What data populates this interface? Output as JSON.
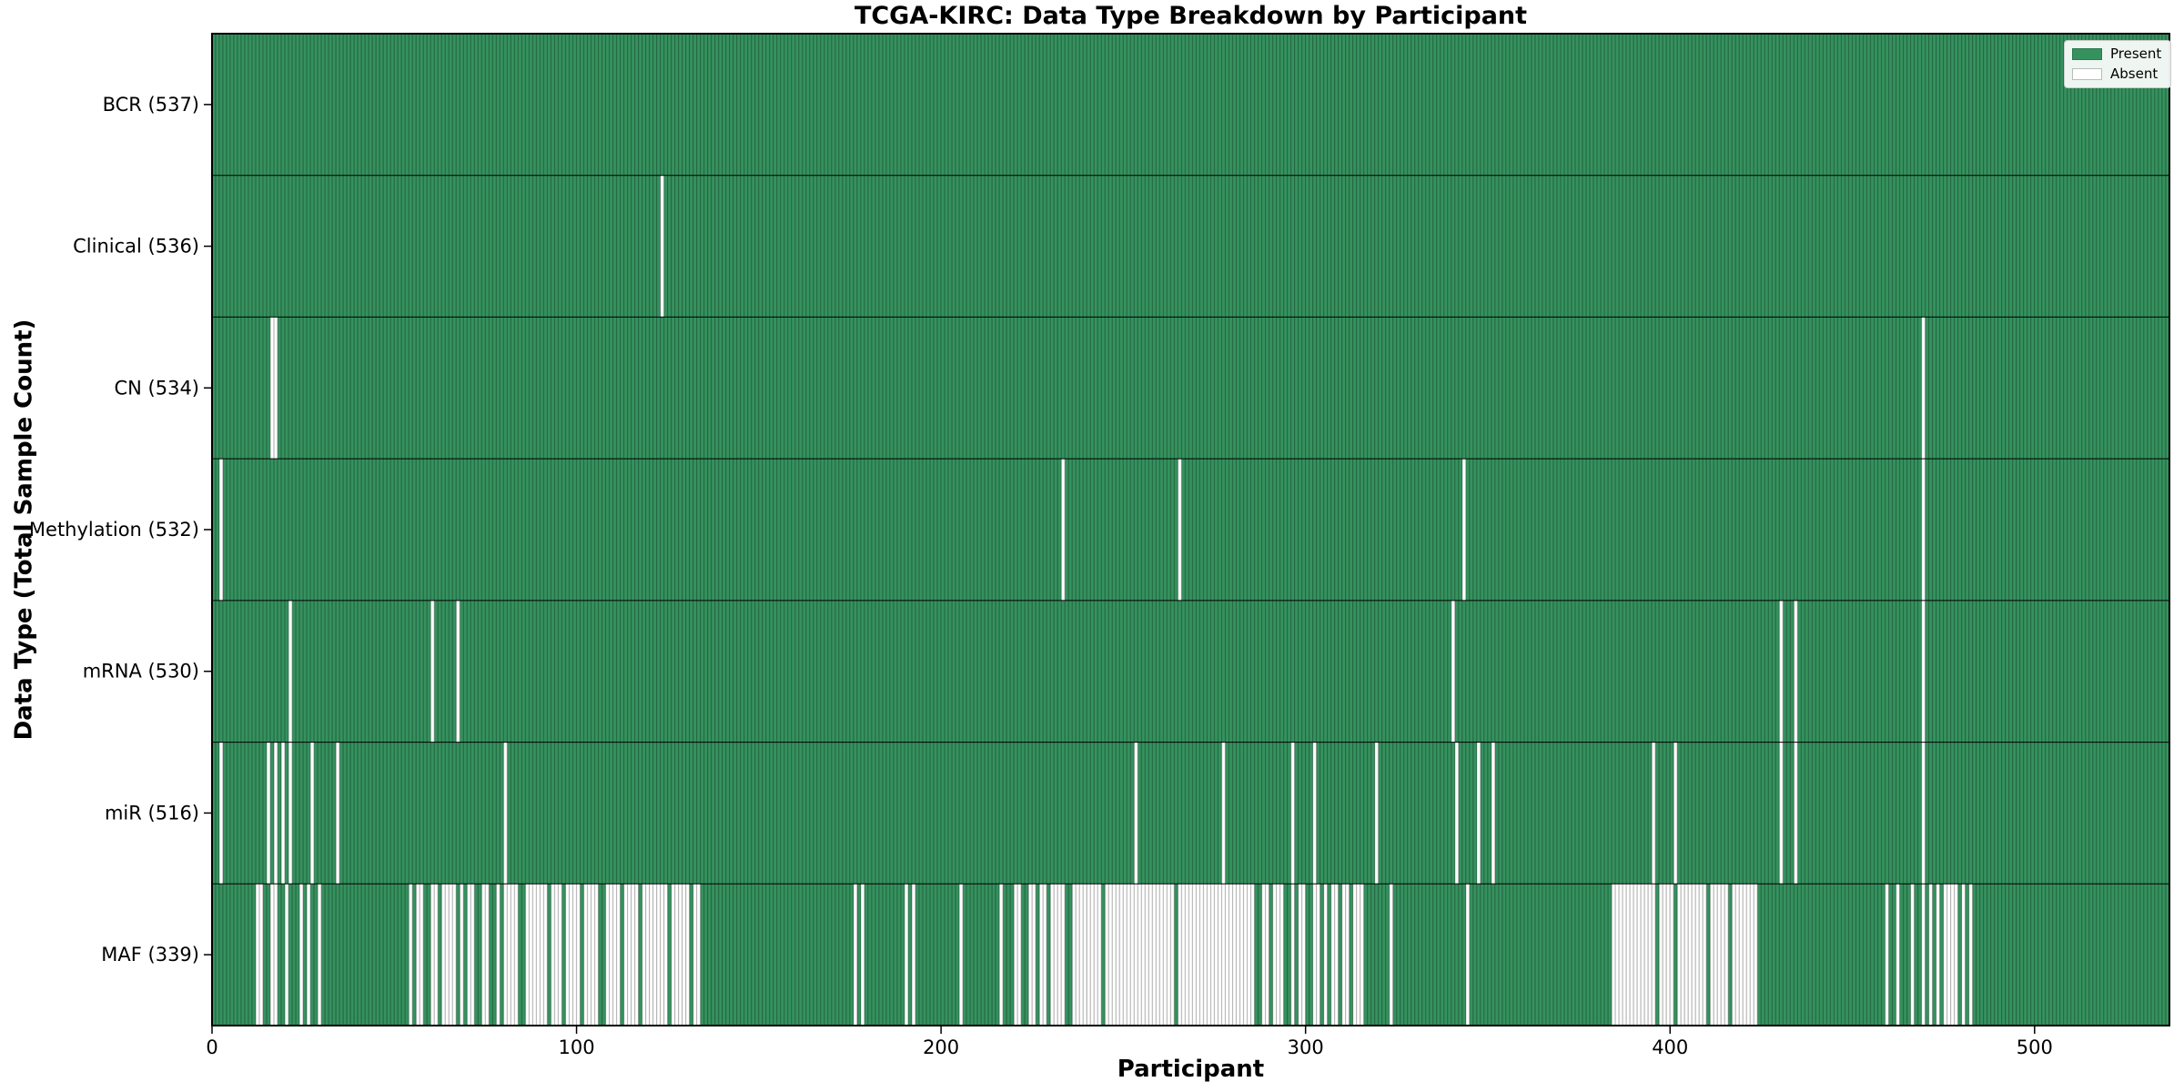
{
  "chart_data": {
    "type": "heatmap",
    "title": "TCGA-KIRC: Data Type Breakdown by Participant",
    "xlabel": "Participant",
    "ylabel": "Data Type (Total Sample Count)",
    "x_ticks": [
      0,
      100,
      200,
      300,
      400,
      500
    ],
    "x_range": [
      0,
      537
    ],
    "total_participants": 537,
    "grid": false,
    "legend_position": "upper right",
    "legend": [
      {
        "label": "Present",
        "color": "#35925e"
      },
      {
        "label": "Absent",
        "color": "#ffffff"
      }
    ],
    "colors": {
      "present": "#35925e",
      "absent": "#ffffff",
      "bar_edge": "rgba(0,0,0,0.30)",
      "spine": "#000000",
      "row_separator": "#000000"
    },
    "rows": [
      {
        "name": "BCR",
        "label": "BCR (537)",
        "present_count": 537,
        "absent_count": 0,
        "absent_ranges": []
      },
      {
        "name": "Clinical",
        "label": "Clinical (536)",
        "present_count": 536,
        "absent_count": 1,
        "absent_ranges": [
          [
            123,
            123
          ]
        ]
      },
      {
        "name": "CN",
        "label": "CN (534)",
        "present_count": 534,
        "absent_count": 3,
        "absent_ranges": [
          [
            16,
            17
          ],
          [
            469,
            469
          ]
        ]
      },
      {
        "name": "Methylation",
        "label": "Methylation (532)",
        "present_count": 532,
        "absent_count": 5,
        "absent_ranges": [
          [
            2,
            2
          ],
          [
            233,
            233
          ],
          [
            265,
            265
          ],
          [
            343,
            343
          ],
          [
            469,
            469
          ]
        ]
      },
      {
        "name": "mRNA",
        "label": "mRNA (530)",
        "present_count": 530,
        "absent_count": 7,
        "absent_ranges": [
          [
            21,
            21
          ],
          [
            60,
            60
          ],
          [
            67,
            67
          ],
          [
            340,
            340
          ],
          [
            430,
            430
          ],
          [
            434,
            434
          ],
          [
            469,
            469
          ]
        ]
      },
      {
        "name": "miR",
        "label": "miR (516)",
        "present_count": 516,
        "absent_count": 21,
        "absent_ranges": [
          [
            2,
            2
          ],
          [
            15,
            15
          ],
          [
            17,
            17
          ],
          [
            19,
            19
          ],
          [
            21,
            21
          ],
          [
            27,
            27
          ],
          [
            34,
            34
          ],
          [
            80,
            80
          ],
          [
            253,
            253
          ],
          [
            277,
            277
          ],
          [
            296,
            296
          ],
          [
            302,
            302
          ],
          [
            319,
            319
          ],
          [
            341,
            341
          ],
          [
            347,
            347
          ],
          [
            351,
            351
          ],
          [
            395,
            395
          ],
          [
            401,
            401
          ],
          [
            430,
            430
          ],
          [
            434,
            434
          ],
          [
            469,
            469
          ]
        ]
      },
      {
        "name": "MAF",
        "label": "MAF (339)",
        "present_count": 339,
        "absent_count": 198,
        "absent_ranges": [
          [
            12,
            13
          ],
          [
            16,
            17
          ],
          [
            20,
            20
          ],
          [
            24,
            24
          ],
          [
            26,
            26
          ],
          [
            29,
            29
          ],
          [
            54,
            54
          ],
          [
            56,
            57
          ],
          [
            60,
            61
          ],
          [
            63,
            66
          ],
          [
            68,
            68
          ],
          [
            70,
            71
          ],
          [
            74,
            75
          ],
          [
            78,
            78
          ],
          [
            80,
            83
          ],
          [
            86,
            89
          ],
          [
            90,
            91
          ],
          [
            93,
            95
          ],
          [
            97,
            100
          ],
          [
            102,
            105
          ],
          [
            108,
            111
          ],
          [
            113,
            116
          ],
          [
            118,
            124
          ],
          [
            126,
            130
          ],
          [
            132,
            133
          ],
          [
            176,
            176
          ],
          [
            178,
            178
          ],
          [
            190,
            190
          ],
          [
            192,
            192
          ],
          [
            205,
            205
          ],
          [
            216,
            216
          ],
          [
            220,
            221
          ],
          [
            224,
            225
          ],
          [
            227,
            228
          ],
          [
            230,
            233
          ],
          [
            236,
            239
          ],
          [
            240,
            243
          ],
          [
            245,
            263
          ],
          [
            265,
            285
          ],
          [
            288,
            289
          ],
          [
            291,
            293
          ],
          [
            296,
            296
          ],
          [
            298,
            299
          ],
          [
            302,
            303
          ],
          [
            305,
            305
          ],
          [
            307,
            308
          ],
          [
            310,
            311
          ],
          [
            313,
            315
          ],
          [
            323,
            323
          ],
          [
            344,
            344
          ],
          [
            384,
            395
          ],
          [
            397,
            400
          ],
          [
            402,
            409
          ],
          [
            411,
            415
          ],
          [
            417,
            423
          ],
          [
            459,
            459
          ],
          [
            462,
            462
          ],
          [
            466,
            466
          ],
          [
            469,
            469
          ],
          [
            471,
            471
          ],
          [
            473,
            473
          ],
          [
            475,
            478
          ],
          [
            480,
            480
          ],
          [
            482,
            482
          ]
        ]
      }
    ]
  }
}
